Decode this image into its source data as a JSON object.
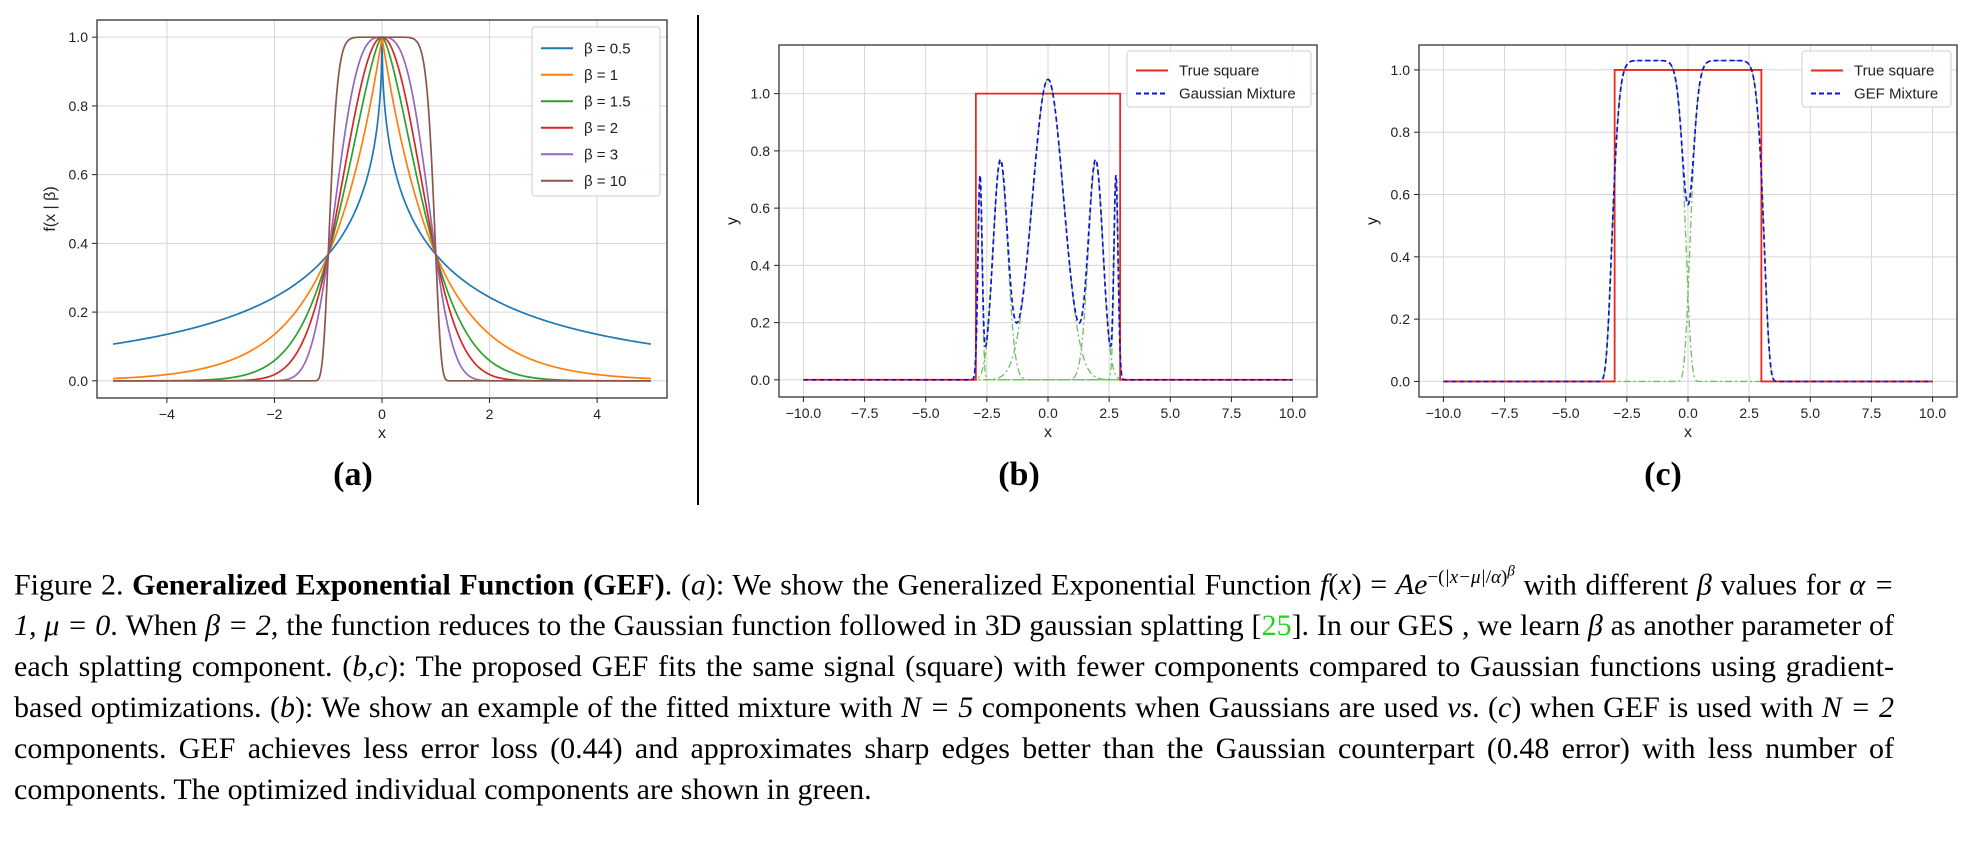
{
  "colors": {
    "tab_blue": "#1f77b4",
    "tab_orange": "#ff7f0e",
    "tab_green": "#2ca02c",
    "tab_red": "#d62728",
    "tab_purple": "#9467bd",
    "tab_brown": "#8c564b",
    "true_square": "#e8271f",
    "mixture": "#1010dd",
    "component": "#6fbf5f",
    "citation": "#1fd41f"
  },
  "panels": {
    "a_label": "(a)",
    "b_label": "(b)",
    "c_label": "(c)"
  },
  "chart_data": [
    {
      "type": "line",
      "panel": "a",
      "xlabel": "x",
      "ylabel": "f(x | β)",
      "xlim": [
        -5.3,
        5.3
      ],
      "ylim": [
        -0.05,
        1.05
      ],
      "xticks": [
        -4,
        -2,
        0,
        2,
        4
      ],
      "yticks": [
        0.0,
        0.2,
        0.4,
        0.6,
        0.8,
        1.0
      ],
      "grid": true,
      "legend_position": "top-right",
      "function": "exp(-|x|^beta)",
      "x_range": [
        -5,
        5
      ],
      "series": [
        {
          "name": "β = 0.5",
          "beta": 0.5,
          "color": "#1f77b4"
        },
        {
          "name": "β = 1",
          "beta": 1,
          "color": "#ff7f0e"
        },
        {
          "name": "β = 1.5",
          "beta": 1.5,
          "color": "#2ca02c"
        },
        {
          "name": "β = 2",
          "beta": 2,
          "color": "#d62728"
        },
        {
          "name": "β = 3",
          "beta": 3,
          "color": "#9467bd"
        },
        {
          "name": "β = 10",
          "beta": 10,
          "color": "#8c564b"
        }
      ]
    },
    {
      "type": "line",
      "panel": "b",
      "xlabel": "x",
      "ylabel": "y",
      "xlim": [
        -11,
        11
      ],
      "ylim": [
        -0.06,
        1.17
      ],
      "xticks": [
        -10.0,
        -7.5,
        -5.0,
        -2.5,
        0.0,
        2.5,
        5.0,
        7.5,
        10.0
      ],
      "yticks": [
        0.0,
        0.2,
        0.4,
        0.6,
        0.8,
        1.0
      ],
      "grid": true,
      "legend_position": "top-right",
      "square": {
        "x": [
          -10,
          -2.95,
          -2.95,
          2.95,
          2.95,
          10
        ],
        "y": [
          0,
          0,
          1,
          1,
          0,
          0
        ]
      },
      "series": [
        {
          "name": "True square",
          "style": "solid",
          "color": "#e8271f"
        },
        {
          "name": "Gaussian Mixture",
          "style": "dashed",
          "color": "#1010dd"
        }
      ],
      "components": [
        {
          "amplitude": 0.7,
          "mu": -2.78,
          "beta": 2,
          "alpha": 0.12
        },
        {
          "amplitude": 0.76,
          "mu": -1.95,
          "beta": 2,
          "alpha": 0.42
        },
        {
          "amplitude": 1.05,
          "mu": 0.0,
          "beta": 2,
          "alpha": 0.9
        },
        {
          "amplitude": 0.76,
          "mu": 1.95,
          "beta": 2,
          "alpha": 0.42
        },
        {
          "amplitude": 0.7,
          "mu": 2.78,
          "beta": 2,
          "alpha": 0.12
        }
      ]
    },
    {
      "type": "line",
      "panel": "c",
      "xlabel": "x",
      "ylabel": "y",
      "xlim": [
        -11,
        11
      ],
      "ylim": [
        -0.05,
        1.08
      ],
      "xticks": [
        -10.0,
        -7.5,
        -5.0,
        -2.5,
        0.0,
        2.5,
        5.0,
        7.5,
        10.0
      ],
      "yticks": [
        0.0,
        0.2,
        0.4,
        0.6,
        0.8,
        1.0
      ],
      "grid": true,
      "legend_position": "top-right",
      "square": {
        "x": [
          -10,
          -3.0,
          -3.0,
          3.0,
          3.0,
          10
        ],
        "y": [
          0,
          0,
          1,
          1,
          0,
          0
        ]
      },
      "series": [
        {
          "name": "True square",
          "style": "solid",
          "color": "#e8271f"
        },
        {
          "name": "GEF Mixture",
          "style": "dashed",
          "color": "#1010dd"
        }
      ],
      "components": [
        {
          "amplitude": 1.03,
          "mu": -1.6,
          "beta": 8,
          "alpha": 1.55
        },
        {
          "amplitude": 1.03,
          "mu": 1.6,
          "beta": 8,
          "alpha": 1.55
        }
      ]
    }
  ],
  "caption": {
    "fig_num": "Figure 2.",
    "title": "Generalized Exponential Function (GEF)",
    "text_1": ". (",
    "a": "a",
    "text_2": "): We show the Generalized Exponential Function ",
    "formula": "f(x) = Ae^{−(|x−μ|/α)^β}",
    "text_3": " with different ",
    "beta": "β",
    "text_4": " values for ",
    "alpha_mu": "α = 1, μ = 0",
    "text_5": ". When ",
    "beta_eq_2": "β = 2",
    "text_6": ", the function reduces to the Gaussian function followed in 3D gaussian splatting [",
    "ref": "25",
    "text_7": "]. In our GES , we learn ",
    "text_8": " as another parameter of each splatting component. (",
    "bc": "b,c",
    "text_9": "): The proposed GEF fits the same signal (square) with fewer components compared to Gaussian functions using gradient-based optimizations. (",
    "b": "b",
    "text_10": "): We show an example of the fitted mixture with ",
    "n5": "N = 5",
    "text_11": " components when Gaussians are used ",
    "vs": "vs",
    "text_12": ". (",
    "c": "c",
    "text_13": ") when GEF is used with ",
    "n2": "N = 2",
    "text_14": " components. GEF achieves less error loss (0.44) and approximates sharp edges better than the Gaussian counterpart (0.48 error) with less number of components. The optimized individual components are shown in green."
  }
}
